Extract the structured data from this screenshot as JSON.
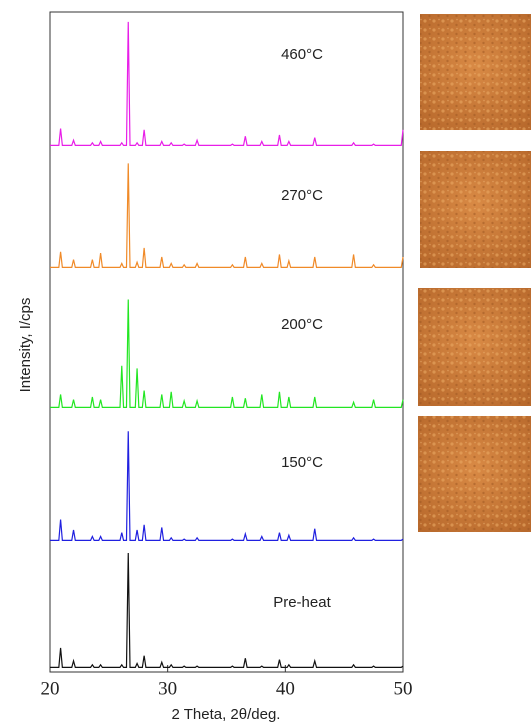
{
  "chart_data": {
    "type": "line",
    "xlabel": "2 Theta, 2θ/deg.",
    "ylabel": "Intensity, I/cps",
    "xlim": [
      20,
      50
    ],
    "xticks": [
      20,
      30,
      40,
      50
    ],
    "ylim": [
      0,
      100
    ],
    "x": [
      20,
      20.75,
      20.9,
      21.05,
      21.85,
      22.0,
      22.15,
      23,
      23.45,
      23.6,
      23.75,
      24.15,
      24.3,
      24.45,
      25,
      25.95,
      26.1,
      26.25,
      26.5,
      26.65,
      26.8,
      27.25,
      27.4,
      27.55,
      27.85,
      28.0,
      28.15,
      29.35,
      29.5,
      29.65,
      30.15,
      30.3,
      30.45,
      31.25,
      31.4,
      31.55,
      32.35,
      32.5,
      32.65,
      34,
      35.35,
      35.5,
      35.65,
      36.45,
      36.6,
      36.75,
      37.85,
      38.0,
      38.15,
      39.35,
      39.5,
      39.65,
      40.15,
      40.3,
      40.45,
      42.35,
      42.5,
      42.65,
      44,
      45.65,
      45.8,
      45.95,
      47.35,
      47.5,
      47.65,
      49.85,
      50
    ],
    "series": [
      {
        "name": "460°C",
        "color": "#e81ee8",
        "values": [
          2,
          2,
          15,
          2,
          2,
          6,
          2,
          2,
          2,
          4,
          2,
          2,
          5,
          2,
          2,
          2,
          4,
          2,
          2,
          97,
          2,
          2,
          4,
          2,
          2,
          14,
          2,
          2,
          5,
          2,
          2,
          4,
          2,
          2,
          3,
          2,
          2,
          6,
          2,
          2,
          2,
          3,
          2,
          2,
          9,
          2,
          2,
          5,
          2,
          2,
          10,
          2,
          2,
          5,
          2,
          2,
          8,
          2,
          2,
          2,
          4,
          2,
          2,
          3,
          2,
          2,
          14
        ]
      },
      {
        "name": "270°C",
        "color": "#f08a28",
        "values": [
          2,
          2,
          14,
          2,
          2,
          8,
          2,
          2,
          2,
          8,
          2,
          2,
          13,
          2,
          2,
          2,
          5,
          2,
          2,
          82,
          2,
          2,
          6,
          2,
          2,
          17,
          2,
          2,
          10,
          2,
          2,
          5,
          2,
          2,
          4,
          2,
          2,
          5,
          2,
          2,
          2,
          4,
          2,
          2,
          10,
          2,
          2,
          5,
          2,
          2,
          12,
          2,
          2,
          7,
          2,
          2,
          10,
          2,
          2,
          2,
          12,
          2,
          2,
          4,
          2,
          2,
          10
        ]
      },
      {
        "name": "200°C",
        "color": "#22e622",
        "values": [
          2,
          2,
          12,
          2,
          2,
          8,
          2,
          2,
          2,
          10,
          2,
          2,
          8,
          2,
          2,
          2,
          34,
          2,
          2,
          85,
          2,
          2,
          32,
          2,
          2,
          15,
          2,
          2,
          12,
          2,
          2,
          14,
          2,
          2,
          7,
          2,
          2,
          7,
          2,
          2,
          2,
          10,
          2,
          2,
          9,
          2,
          2,
          12,
          2,
          2,
          14,
          2,
          2,
          10,
          2,
          2,
          10,
          2,
          2,
          2,
          6,
          2,
          2,
          8,
          2,
          2,
          8
        ]
      },
      {
        "name": "150°C",
        "color": "#2020e0",
        "values": [
          2,
          2,
          18,
          2,
          2,
          10,
          2,
          2,
          2,
          5,
          2,
          2,
          5,
          2,
          2,
          2,
          8,
          2,
          2,
          86,
          2,
          2,
          10,
          2,
          2,
          14,
          2,
          2,
          12,
          2,
          2,
          4,
          2,
          2,
          3,
          2,
          2,
          4,
          2,
          2,
          2,
          3,
          2,
          2,
          7,
          2,
          2,
          5,
          2,
          2,
          8,
          2,
          2,
          6,
          2,
          2,
          11,
          2,
          2,
          2,
          4,
          2,
          2,
          3,
          2,
          2,
          3
        ]
      },
      {
        "name": "Pre-heat",
        "color": "#111111",
        "values": [
          2,
          2,
          17,
          2,
          2,
          7,
          2,
          2,
          2,
          4,
          2,
          2,
          4,
          2,
          2,
          2,
          4,
          2,
          2,
          90,
          2,
          2,
          5,
          2,
          2,
          11,
          2,
          2,
          6,
          2,
          2,
          4,
          2,
          2,
          3,
          2,
          2,
          3,
          2,
          2,
          2,
          3,
          2,
          2,
          9,
          2,
          2,
          3,
          2,
          2,
          8,
          2,
          2,
          4,
          2,
          2,
          7,
          2,
          2,
          2,
          4,
          2,
          2,
          3,
          2,
          2,
          3
        ]
      }
    ]
  }
}
